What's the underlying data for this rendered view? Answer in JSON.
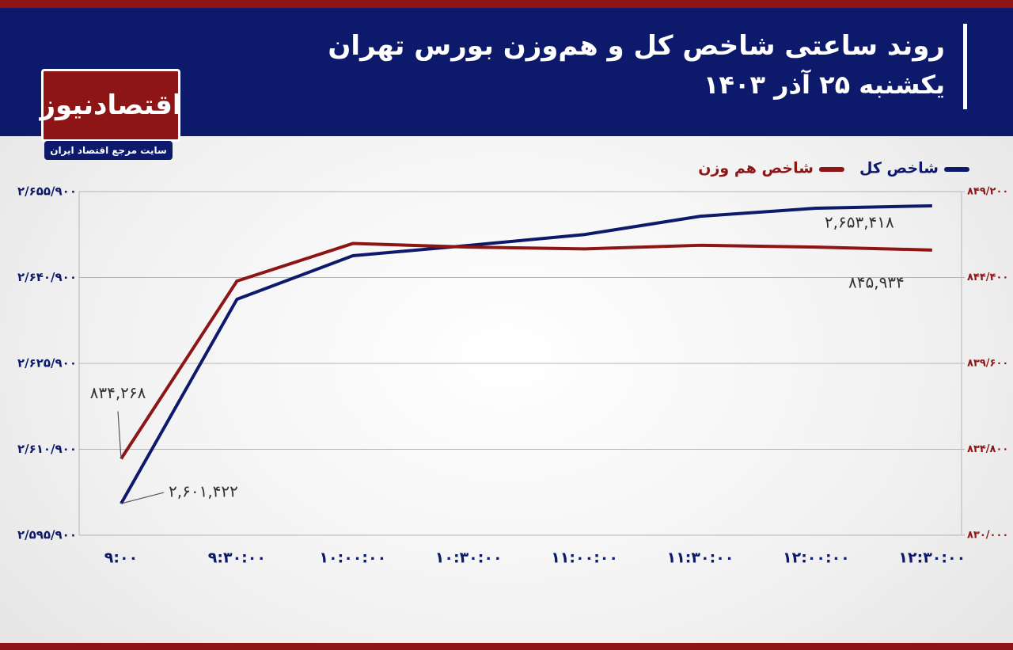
{
  "logo": {
    "name": "اقتصادنیوز",
    "tagline": "سایت مرجع اقتصاد ایران"
  },
  "chart_data": {
    "type": "line",
    "title": "روند ساعتی شاخص کل و هم‌وزن بورس تهران",
    "subtitle": "یکشنبه ۲۵ آذر ۱۴۰۳",
    "categories": [
      "۹:۰۰",
      "۹:۳۰:۰۰",
      "۱۰:۰۰:۰۰",
      "۱۰:۳۰:۰۰",
      "۱۱:۰۰:۰۰",
      "۱۱:۳۰:۰۰",
      "۱۲:۰۰:۰۰",
      "۱۲:۳۰:۰۰"
    ],
    "series": [
      {
        "name": "شاخص کل",
        "color": "#0d1a6b",
        "axis": "y",
        "values": [
          2601422,
          2637100,
          2644700,
          2646500,
          2648400,
          2651600,
          2653000,
          2653418
        ],
        "value_labels": [
          "۲,۶۰۱,۴۲۲",
          null,
          null,
          null,
          null,
          null,
          null,
          "۲,۶۵۳,۴۱۸"
        ]
      },
      {
        "name": "شاخص هم وزن",
        "color": "#8d1515",
        "axis": "y2",
        "values": [
          834268,
          844200,
          846300,
          846100,
          846000,
          846200,
          846100,
          845934
        ],
        "value_labels": [
          "۸۳۴,۲۶۸",
          null,
          null,
          null,
          null,
          null,
          null,
          "۸۴۵,۹۳۴"
        ]
      }
    ],
    "ylim": [
      2595900,
      2655900
    ],
    "yticks": [
      {
        "value": 2595900,
        "label": "۲/۵۹۵/۹۰۰"
      },
      {
        "value": 2610900,
        "label": "۲/۶۱۰/۹۰۰"
      },
      {
        "value": 2625900,
        "label": "۲/۶۲۵/۹۰۰"
      },
      {
        "value": 2640900,
        "label": "۲/۶۴۰/۹۰۰"
      },
      {
        "value": 2655900,
        "label": "۲/۶۵۵/۹۰۰"
      }
    ],
    "y2lim": [
      830000,
      849200
    ],
    "y2ticks": [
      {
        "value": 830000,
        "label": "۸۳۰/۰۰۰"
      },
      {
        "value": 834800,
        "label": "۸۳۴/۸۰۰"
      },
      {
        "value": 839600,
        "label": "۸۳۹/۶۰۰"
      },
      {
        "value": 844400,
        "label": "۸۴۴/۴۰۰"
      },
      {
        "value": 849200,
        "label": "۸۴۹/۲۰۰"
      }
    ],
    "grid": true,
    "legend": "top-right"
  }
}
